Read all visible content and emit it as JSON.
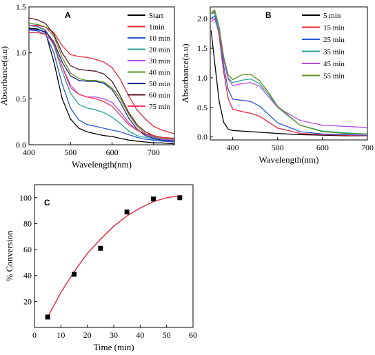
{
  "chart_data": [
    {
      "panel": "A",
      "type": "line",
      "xlabel": "Wavelength(nm)",
      "ylabel": "Absorbance(a.u)",
      "xlim": [
        400,
        750
      ],
      "ylim": [
        0,
        1.5
      ],
      "xticks": [
        400,
        500,
        600,
        700
      ],
      "yticks": [
        0.0,
        0.5,
        1.0,
        1.5
      ],
      "ytick_labels": [
        "0.0",
        "0.5",
        "1.0",
        "1.5"
      ],
      "legend": "top-right",
      "series": [
        {
          "name": "Start",
          "color": "#000000",
          "x": [
            400,
            420,
            440,
            460,
            480,
            500,
            520,
            540,
            560,
            580,
            600,
            620,
            640,
            660,
            680,
            700,
            720,
            750
          ],
          "y": [
            1.27,
            1.26,
            1.22,
            0.9,
            0.5,
            0.28,
            0.18,
            0.14,
            0.12,
            0.1,
            0.09,
            0.07,
            0.05,
            0.04,
            0.03,
            0.02,
            0.02,
            0.01
          ]
        },
        {
          "name": "1min",
          "color": "#e8233a",
          "x": [
            400,
            420,
            440,
            460,
            480,
            500,
            520,
            540,
            560,
            580,
            600,
            620,
            640,
            660,
            680,
            700,
            720,
            750
          ],
          "y": [
            1.3,
            1.3,
            1.28,
            1.22,
            1.08,
            0.98,
            0.96,
            0.95,
            0.93,
            0.9,
            0.84,
            0.71,
            0.53,
            0.38,
            0.28,
            0.2,
            0.16,
            0.12
          ]
        },
        {
          "name": "10 min",
          "color": "#2a55d6",
          "x": [
            400,
            420,
            440,
            460,
            480,
            500,
            520,
            540,
            560,
            580,
            600,
            620,
            640,
            660,
            680,
            700,
            720,
            750
          ],
          "y": [
            1.25,
            1.24,
            1.2,
            1.0,
            0.66,
            0.4,
            0.27,
            0.22,
            0.2,
            0.18,
            0.16,
            0.14,
            0.11,
            0.08,
            0.06,
            0.05,
            0.04,
            0.03
          ]
        },
        {
          "name": "20 min",
          "color": "#27a39a",
          "x": [
            400,
            420,
            440,
            460,
            480,
            500,
            520,
            540,
            560,
            580,
            600,
            620,
            640,
            660,
            680,
            700,
            720,
            750
          ],
          "y": [
            1.3,
            1.28,
            1.24,
            1.08,
            0.8,
            0.56,
            0.44,
            0.4,
            0.38,
            0.35,
            0.3,
            0.23,
            0.15,
            0.1,
            0.08,
            0.06,
            0.05,
            0.04
          ]
        },
        {
          "name": "30 min",
          "color": "#b24ce0",
          "x": [
            400,
            420,
            440,
            460,
            480,
            500,
            520,
            540,
            560,
            580,
            600,
            620,
            640,
            660,
            680,
            700,
            720,
            750
          ],
          "y": [
            1.3,
            1.29,
            1.25,
            1.1,
            0.85,
            0.65,
            0.55,
            0.52,
            0.52,
            0.5,
            0.46,
            0.36,
            0.24,
            0.16,
            0.11,
            0.08,
            0.06,
            0.05
          ]
        },
        {
          "name": "40 min",
          "color": "#5f8f21",
          "x": [
            400,
            420,
            440,
            460,
            480,
            500,
            520,
            540,
            560,
            580,
            600,
            620,
            640,
            660,
            680,
            700,
            720,
            750
          ],
          "y": [
            1.32,
            1.31,
            1.28,
            1.18,
            0.95,
            0.78,
            0.72,
            0.7,
            0.7,
            0.68,
            0.62,
            0.5,
            0.33,
            0.2,
            0.12,
            0.09,
            0.07,
            0.06
          ]
        },
        {
          "name": "50 min",
          "color": "#1a2a8f",
          "x": [
            400,
            420,
            440,
            460,
            480,
            500,
            520,
            540,
            560,
            580,
            600,
            620,
            640,
            660,
            680,
            700,
            720,
            750
          ],
          "y": [
            1.26,
            1.25,
            1.23,
            1.12,
            0.9,
            0.75,
            0.7,
            0.69,
            0.69,
            0.67,
            0.6,
            0.46,
            0.29,
            0.17,
            0.1,
            0.07,
            0.05,
            0.04
          ]
        },
        {
          "name": "60 min",
          "color": "#5a1520",
          "x": [
            400,
            420,
            440,
            460,
            480,
            500,
            520,
            540,
            560,
            580,
            600,
            620,
            640,
            660,
            680,
            700,
            720,
            750
          ],
          "y": [
            1.38,
            1.36,
            1.32,
            1.2,
            1.0,
            0.86,
            0.82,
            0.81,
            0.8,
            0.77,
            0.69,
            0.53,
            0.35,
            0.22,
            0.14,
            0.1,
            0.08,
            0.07
          ]
        },
        {
          "name": "75 min",
          "color": "#f0305a",
          "x": [
            400,
            420,
            440,
            460,
            480,
            500,
            520,
            540,
            560,
            580,
            600,
            620,
            640,
            660,
            680,
            700,
            720,
            750
          ],
          "y": [
            1.22,
            1.22,
            1.2,
            1.1,
            0.85,
            0.62,
            0.55,
            0.52,
            0.5,
            0.47,
            0.42,
            0.32,
            0.22,
            0.16,
            0.12,
            0.1,
            0.08,
            0.07
          ]
        }
      ]
    },
    {
      "panel": "B",
      "type": "line",
      "xlabel": "Wavelength(nm)",
      "ylabel": "Absorbance(a.u)",
      "xlim": [
        350,
        700
      ],
      "ylim": [
        -0.05,
        2.2
      ],
      "xticks": [
        400,
        500,
        600,
        700
      ],
      "yticks": [
        0.0,
        0.5,
        1.0,
        1.5,
        2.0
      ],
      "ytick_labels": [
        "0.0",
        "0.5",
        "1.0",
        "1.5",
        "2.0"
      ],
      "legend": "top-right",
      "series": [
        {
          "name": "5 min",
          "color": "#000000",
          "x": [
            352,
            360,
            370,
            380,
            390,
            400,
            420,
            440,
            460,
            480,
            500,
            550,
            600,
            650,
            700
          ],
          "y": [
            1.8,
            1.25,
            0.6,
            0.25,
            0.13,
            0.11,
            0.1,
            0.09,
            0.08,
            0.07,
            0.06,
            0.04,
            0.03,
            0.02,
            0.02
          ]
        },
        {
          "name": "15 min",
          "color": "#e8233a",
          "x": [
            352,
            360,
            370,
            380,
            390,
            400,
            420,
            440,
            460,
            480,
            500,
            550,
            600,
            650,
            700
          ],
          "y": [
            2.1,
            2.12,
            1.7,
            1.1,
            0.65,
            0.47,
            0.43,
            0.4,
            0.35,
            0.25,
            0.15,
            0.06,
            0.04,
            0.03,
            0.02
          ]
        },
        {
          "name": "25 min",
          "color": "#2a55d6",
          "x": [
            352,
            360,
            370,
            380,
            390,
            400,
            420,
            440,
            460,
            480,
            500,
            550,
            600,
            650,
            700
          ],
          "y": [
            2.0,
            2.05,
            1.75,
            1.2,
            0.8,
            0.64,
            0.62,
            0.6,
            0.52,
            0.38,
            0.24,
            0.09,
            0.05,
            0.04,
            0.03
          ]
        },
        {
          "name": "35 min",
          "color": "#27a39a",
          "x": [
            352,
            360,
            370,
            380,
            390,
            400,
            420,
            440,
            460,
            480,
            500,
            550,
            600,
            650,
            700
          ],
          "y": [
            2.08,
            2.1,
            1.8,
            1.35,
            1.0,
            0.92,
            0.96,
            0.98,
            0.9,
            0.72,
            0.5,
            0.2,
            0.1,
            0.07,
            0.05
          ]
        },
        {
          "name": "45 min",
          "color": "#b24ce0",
          "x": [
            352,
            360,
            370,
            380,
            390,
            400,
            420,
            440,
            460,
            480,
            500,
            550,
            600,
            650,
            700
          ],
          "y": [
            1.95,
            2.0,
            1.75,
            1.3,
            0.98,
            0.87,
            0.9,
            0.92,
            0.86,
            0.68,
            0.5,
            0.28,
            0.2,
            0.18,
            0.16
          ]
        },
        {
          "name": "55 min",
          "color": "#5f8f21",
          "x": [
            352,
            360,
            370,
            380,
            390,
            400,
            420,
            440,
            460,
            480,
            500,
            550,
            600,
            650,
            700
          ],
          "y": [
            2.1,
            2.15,
            1.85,
            1.35,
            1.05,
            0.97,
            1.05,
            1.06,
            0.95,
            0.75,
            0.52,
            0.2,
            0.09,
            0.06,
            0.05
          ]
        }
      ]
    },
    {
      "panel": "C",
      "type": "scatter",
      "xlabel": "Time (min)",
      "ylabel": "% Conversion",
      "xlim": [
        0,
        60
      ],
      "ylim": [
        0,
        110
      ],
      "xticks": [
        0,
        10,
        20,
        30,
        40,
        50,
        60
      ],
      "yticks": [
        20,
        40,
        60,
        80,
        100
      ],
      "points": {
        "x": [
          5,
          15,
          25,
          35,
          45,
          55
        ],
        "y": [
          8,
          41,
          61,
          89,
          99,
          100
        ],
        "color": "#000000"
      },
      "fit": {
        "color": "#e8233a",
        "x": [
          5,
          10,
          15,
          20,
          25,
          30,
          35,
          40,
          45,
          50,
          55
        ],
        "y": [
          8,
          27,
          43,
          57,
          68,
          78,
          86,
          92,
          97,
          100,
          101.5
        ]
      }
    }
  ]
}
